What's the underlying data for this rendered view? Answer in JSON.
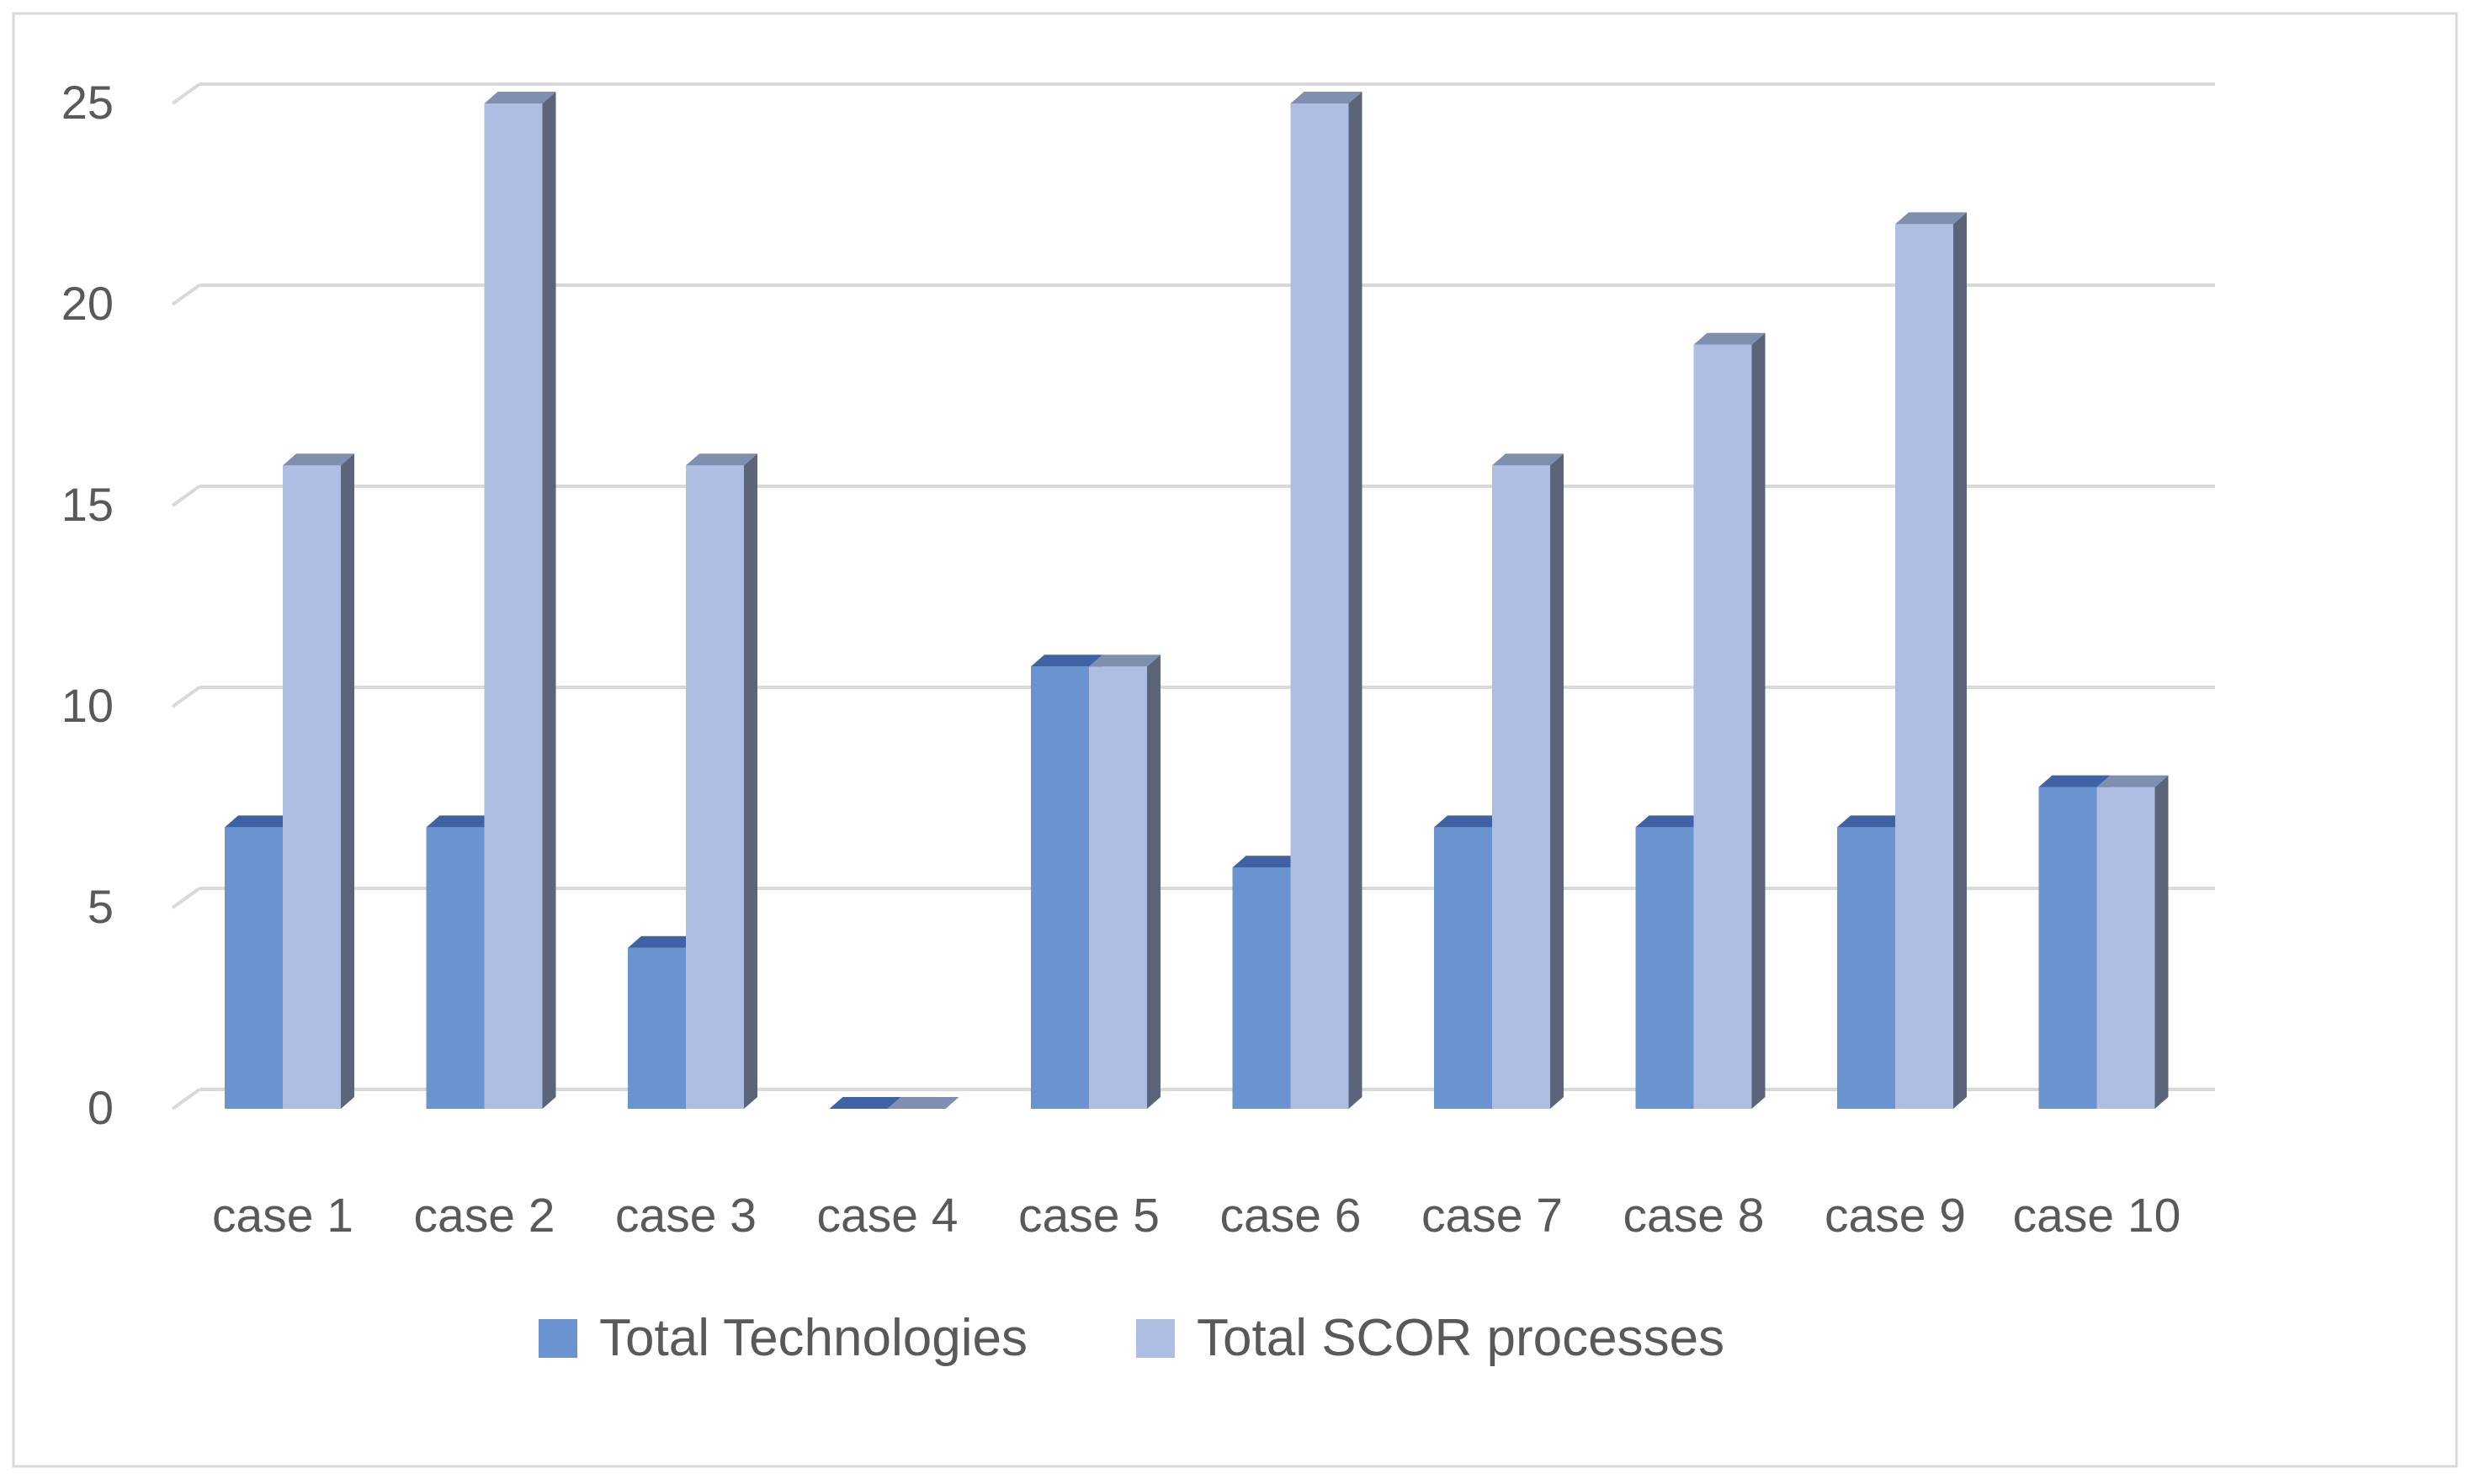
{
  "colors": {
    "series_front": [
      "#6b93d0",
      "#aebde2"
    ],
    "series_top": [
      "#3f62a4",
      "#7f8fb0"
    ],
    "series_side": "#5b6478",
    "gridline": "#d9d9d9",
    "axis_line": "#d9d9d9",
    "tick_text": "#595959",
    "legend_text": "#595959",
    "frame": "#d9d9d9"
  },
  "chart_data": {
    "type": "bar",
    "title": "",
    "xlabel": "",
    "ylabel": "",
    "ylim": [
      0,
      25
    ],
    "yticks": [
      "0",
      "5",
      "10",
      "15",
      "20",
      "25"
    ],
    "grid": true,
    "legend_position": "bottom",
    "categories": [
      "case 1",
      "case 2",
      "case 3",
      "case 4",
      "case 5",
      "case 6",
      "case 7",
      "case 8",
      "case 9",
      "case 10"
    ],
    "series": [
      {
        "name": "Total Technologies",
        "values": [
          7,
          7,
          4,
          0,
          11,
          6,
          7,
          7,
          7,
          8
        ]
      },
      {
        "name": "Total SCOR processes",
        "values": [
          16,
          25,
          16,
          0,
          11,
          25,
          16,
          19,
          22,
          8
        ]
      }
    ]
  }
}
